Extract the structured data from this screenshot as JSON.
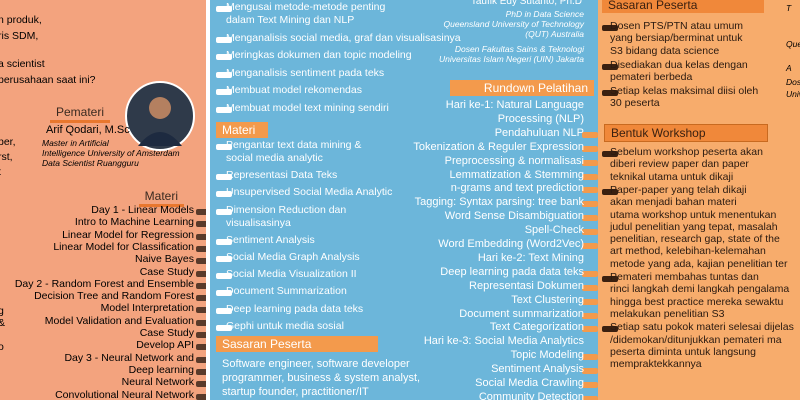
{
  "left_panel": {
    "intro_lines": [
      "n produk,",
      "ris SDM,",
      "a scientist",
      "perusahaan saat ini?"
    ],
    "cropped_fragments": [
      "per,",
      "rst,",
      "t",
      "g",
      "&",
      "o"
    ],
    "speaker_heading": "Pemateri",
    "speaker": {
      "name": "Arif Qodari, M.Sc",
      "details": [
        "Master in Artificial",
        "Intelligence University of Amsterdam",
        "Data Scientist Ruangguru"
      ]
    },
    "materi_heading": "Materi",
    "materi_items": [
      "Day 1 - Linear Models",
      "Intro to Machine Learning",
      "Linear Model for Regression",
      "Linear Model for Classification",
      "Naive Bayes",
      "Case Study",
      "Day 2 - Random Forest and Ensemble",
      "Decision Tree and Random Forest",
      "Model Interpretation",
      "Model Validation and Evaluation",
      "Case Study",
      "Develop API",
      "Day 3 - Neural Network and",
      "Deep learning",
      "Neural Network",
      "Convolutional Neural Network"
    ]
  },
  "middle_panel": {
    "objectives": [
      [
        "Mengusai metode-metode penting",
        "dalam Text Mining dan NLP"
      ],
      [
        "Menganalisis social media, graf dan visualisasinya"
      ],
      [
        "Meringkas dokumen dan topic modeling"
      ],
      [
        "Menganalisis sentiment pada teks"
      ],
      [
        "Membuat model rekomendas"
      ],
      [
        "Membuat model text mining sendiri"
      ]
    ],
    "materi_heading": "Materi",
    "materi_items": [
      [
        "Pengantar text data mining &",
        "social media analytic"
      ],
      [
        "Representasi Data Teks"
      ],
      [
        "Unsupervised Social Media Analytic"
      ],
      [
        "Dimension Reduction dan",
        "visualisasinya"
      ],
      [
        "Sentiment Analysis"
      ],
      [
        "Social Media Graph Analysis"
      ],
      [
        "Social Media Visualization II"
      ],
      [
        "Document Summarization"
      ],
      [
        "Deep learning pada data teks"
      ],
      [
        "Gephi untuk media sosial"
      ]
    ],
    "audience_heading": "Sasaran Peserta",
    "audience_lines": [
      "Software engineer, software developer",
      "programmer, business & system analyst,",
      "startup founder, practitioner/IT"
    ],
    "speaker": {
      "name": "Taufik Edy Sutanto, Ph.D",
      "details": [
        "PhD in Data Science",
        "Queensland University of Technology",
        "(QUT) Australia",
        "Dosen Fakultas Sains & Teknologi",
        "Universitas Islam Negeri (UIN) Jakarta"
      ]
    },
    "rundown_heading": "Rundown Pelatihan",
    "rundown_items": [
      [
        "Hari ke-1: Natural Language",
        "Processing (NLP)"
      ],
      [
        "Pendahuluan NLP"
      ],
      [
        "Tokenization & Reguler Expression"
      ],
      [
        "Preprocessing & normalisasi"
      ],
      [
        "Lemmatization & Stemming"
      ],
      [
        "n-grams and text prediction"
      ],
      [
        "Tagging: Syntax parsing: tree bank"
      ],
      [
        "Word Sense Disambiguation"
      ],
      [
        "Spell-Check"
      ],
      [
        "Word Embedding (Word2Vec)"
      ],
      [
        "Hari ke-2: Text Mining"
      ],
      [
        "Deep learning pada data teks"
      ],
      [
        "Representasi Dokumen"
      ],
      [
        "Text Clustering"
      ],
      [
        "Document summarization"
      ],
      [
        "Text Categorization"
      ],
      [
        "Hari ke-3: Social Media Analytics"
      ],
      [
        "Topic Modeling"
      ],
      [
        "Sentiment Analysis"
      ],
      [
        "Social Media Crawling"
      ],
      [
        "Community Detection"
      ]
    ]
  },
  "right_panel": {
    "audience_heading": "Sasaran Peserta",
    "audience_items": [
      [
        "Dosen PTS/PTN atau umum",
        "yang bersiap/berminat untuk",
        "S3 bidang data science"
      ],
      [
        "Disediakan dua kelas dengan",
        "pemateri berbeda"
      ],
      [
        "Setiap kelas maksimal diisi oleh",
        "30 peserta"
      ]
    ],
    "cropped_fragments": [
      "T",
      "Queensl",
      "A",
      "Dosen",
      "Univ"
    ],
    "format_heading": "Bentuk Workshop",
    "format_items": [
      [
        "Sebelum workshop peserta akan",
        "diberi review paper dan paper",
        "teknikal utama untuk dikaji"
      ],
      [
        "Paper-paper yang telah dikaji",
        "akan menjadi bahan materi",
        "utama workshop untuk menentukan",
        "judul penelitian yang tepat, masalah",
        "penelitian, research gap, state of the",
        "art method, kelebihan-kelemahan",
        "metode yang ada, kajian penelitian ter"
      ],
      [
        "Pemateri membahas tuntas dan",
        "rinci langkah demi langkah pengalama",
        "hingga best practice mereka sewaktu",
        "melakukan penelitian S3"
      ],
      [
        "Setiap satu pokok materi selesai dijelas",
        "/didemokan/ditunjukkan pemateri ma",
        "peserta diminta untuk langsung",
        "mempraktekkannya"
      ]
    ]
  }
}
